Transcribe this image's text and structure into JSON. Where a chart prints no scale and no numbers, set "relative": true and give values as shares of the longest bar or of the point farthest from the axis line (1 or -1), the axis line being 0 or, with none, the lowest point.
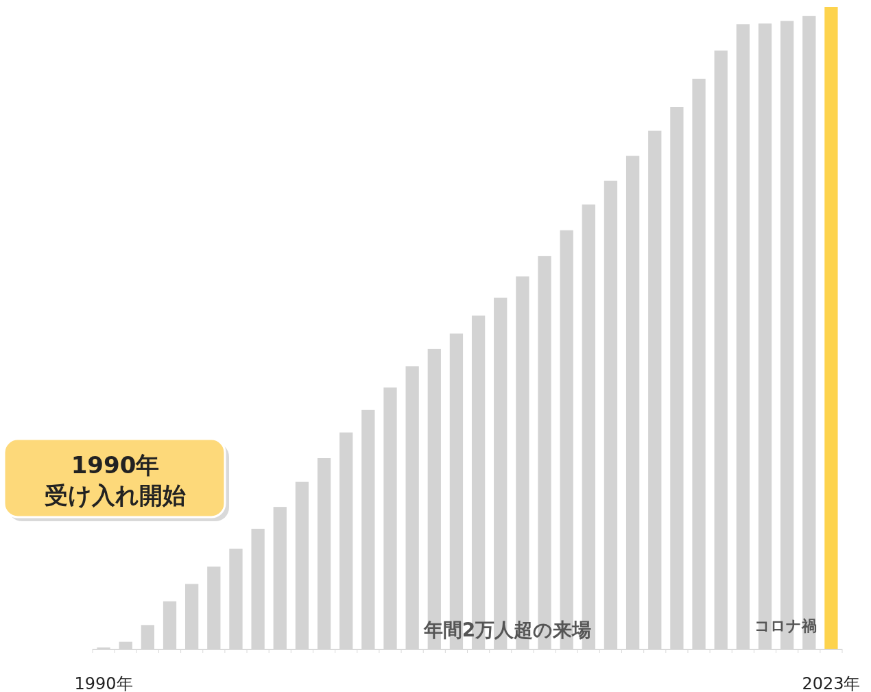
{
  "chart_data": {
    "type": "bar",
    "relative": true,
    "categories": [
      "1990年",
      null,
      null,
      null,
      null,
      null,
      null,
      null,
      null,
      null,
      null,
      null,
      null,
      null,
      null,
      null,
      null,
      null,
      null,
      null,
      null,
      null,
      null,
      null,
      null,
      null,
      null,
      null,
      null,
      null,
      null,
      null,
      null,
      "2023年"
    ],
    "values": [
      0.002,
      0.011,
      0.037,
      0.074,
      0.101,
      0.128,
      0.156,
      0.187,
      0.221,
      0.26,
      0.297,
      0.337,
      0.372,
      0.407,
      0.44,
      0.467,
      0.491,
      0.519,
      0.547,
      0.58,
      0.612,
      0.652,
      0.692,
      0.729,
      0.768,
      0.807,
      0.844,
      0.888,
      0.932,
      0.973,
      0.974,
      0.978,
      0.986,
      1
    ],
    "colors": [
      "#d3d3d3",
      "#d3d3d3",
      "#d3d3d3",
      "#d3d3d3",
      "#d3d3d3",
      "#d3d3d3",
      "#d3d3d3",
      "#d3d3d3",
      "#d3d3d3",
      "#d3d3d3",
      "#d3d3d3",
      "#d3d3d3",
      "#d3d3d3",
      "#d3d3d3",
      "#d3d3d3",
      "#d3d3d3",
      "#d3d3d3",
      "#d3d3d3",
      "#d3d3d3",
      "#d3d3d3",
      "#d3d3d3",
      "#d3d3d3",
      "#d3d3d3",
      "#d3d3d3",
      "#d3d3d3",
      "#d3d3d3",
      "#d3d3d3",
      "#d3d3d3",
      "#d3d3d3",
      "#d3d3d3",
      "#d3d3d3",
      "#d3d3d3",
      "#d3d3d3",
      "#fdd34d"
    ],
    "annotations": [
      "1990年",
      "受け入れ開始",
      "年間2万人超の来場",
      "コロナ禍"
    ]
  }
}
